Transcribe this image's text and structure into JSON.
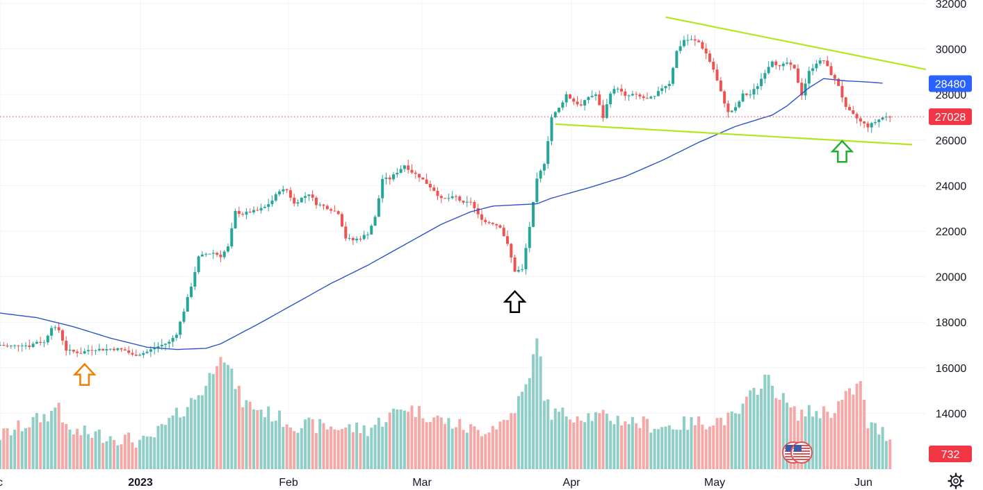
{
  "chart_data": {
    "type": "candlestick",
    "y_range": [
      11600,
      32500
    ],
    "y_ticks": [
      "32000",
      "30000",
      "28000",
      "26000",
      "24000",
      "22000",
      "20000",
      "18000",
      "16000",
      "14000"
    ],
    "x_labels": [
      {
        "label": "c",
        "bold": false
      },
      {
        "label": "2023",
        "bold": true
      },
      {
        "label": "Feb",
        "bold": false
      },
      {
        "label": "Mar",
        "bold": false
      },
      {
        "label": "Apr",
        "bold": false
      },
      {
        "label": "May",
        "bold": false
      },
      {
        "label": "Jun",
        "bold": false
      }
    ],
    "price_tag": {
      "text": "27028",
      "value": 27028,
      "color": "#f23645"
    },
    "ma_tag": {
      "text": "28480",
      "value": 28480,
      "color": "#2962ff"
    },
    "volume_tag": {
      "text": "732",
      "color": "#f23645"
    },
    "colors": {
      "up": "#26a69a",
      "down": "#ef5350",
      "vol_up": "#8fcec7",
      "vol_down": "#f5a8a6",
      "ma": "#2a53c9",
      "trend": "#b5e61d"
    },
    "close_keypoints": [
      [
        0,
        17000
      ],
      [
        2,
        16950
      ],
      [
        4,
        16960
      ],
      [
        6,
        17020
      ],
      [
        8,
        16950
      ],
      [
        10,
        17150
      ],
      [
        12,
        17100
      ],
      [
        14,
        17800
      ],
      [
        16,
        17650
      ],
      [
        18,
        16780
      ],
      [
        20,
        16700
      ],
      [
        22,
        16650
      ],
      [
        24,
        16780
      ],
      [
        26,
        16820
      ],
      [
        28,
        16800
      ],
      [
        30,
        16830
      ],
      [
        32,
        16820
      ],
      [
        34,
        16760
      ],
      [
        36,
        16550
      ],
      [
        38,
        16600
      ],
      [
        40,
        16700
      ],
      [
        42,
        16880
      ],
      [
        44,
        17000
      ],
      [
        46,
        17120
      ],
      [
        48,
        17500
      ],
      [
        50,
        18500
      ],
      [
        52,
        19600
      ],
      [
        54,
        20850
      ],
      [
        56,
        21000
      ],
      [
        58,
        21050
      ],
      [
        60,
        20900
      ],
      [
        62,
        21300
      ],
      [
        64,
        22850
      ],
      [
        66,
        22750
      ],
      [
        68,
        22850
      ],
      [
        70,
        22900
      ],
      [
        72,
        23050
      ],
      [
        74,
        23350
      ],
      [
        76,
        23800
      ],
      [
        78,
        23800
      ],
      [
        80,
        23200
      ],
      [
        82,
        23450
      ],
      [
        84,
        23650
      ],
      [
        86,
        23200
      ],
      [
        88,
        23100
      ],
      [
        90,
        22950
      ],
      [
        92,
        22800
      ],
      [
        94,
        21700
      ],
      [
        96,
        21600
      ],
      [
        98,
        21700
      ],
      [
        100,
        21900
      ],
      [
        102,
        22600
      ],
      [
        104,
        24300
      ],
      [
        106,
        24300
      ],
      [
        108,
        24600
      ],
      [
        110,
        24900
      ],
      [
        112,
        24600
      ],
      [
        114,
        24400
      ],
      [
        116,
        24100
      ],
      [
        118,
        23800
      ],
      [
        120,
        23400
      ],
      [
        122,
        23450
      ],
      [
        124,
        23500
      ],
      [
        126,
        23200
      ],
      [
        128,
        23300
      ],
      [
        130,
        22700
      ],
      [
        132,
        22400
      ],
      [
        134,
        22350
      ],
      [
        136,
        22200
      ],
      [
        138,
        21400
      ],
      [
        140,
        20250
      ],
      [
        142,
        20300
      ],
      [
        144,
        22200
      ],
      [
        146,
        24250
      ],
      [
        148,
        25000
      ],
      [
        150,
        27000
      ],
      [
        152,
        27400
      ],
      [
        154,
        28000
      ],
      [
        156,
        27700
      ],
      [
        158,
        27500
      ],
      [
        160,
        27900
      ],
      [
        162,
        28000
      ],
      [
        164,
        27000
      ],
      [
        166,
        28100
      ],
      [
        168,
        28300
      ],
      [
        170,
        27900
      ],
      [
        172,
        28000
      ],
      [
        174,
        27900
      ],
      [
        176,
        27800
      ],
      [
        178,
        27900
      ],
      [
        180,
        28300
      ],
      [
        182,
        28500
      ],
      [
        184,
        29900
      ],
      [
        186,
        30400
      ],
      [
        188,
        30400
      ],
      [
        190,
        30300
      ],
      [
        192,
        29800
      ],
      [
        194,
        29100
      ],
      [
        196,
        28100
      ],
      [
        198,
        27200
      ],
      [
        200,
        27400
      ],
      [
        202,
        28000
      ],
      [
        204,
        28000
      ],
      [
        206,
        28400
      ],
      [
        208,
        29000
      ],
      [
        210,
        29500
      ],
      [
        212,
        29200
      ],
      [
        214,
        29400
      ],
      [
        216,
        29100
      ],
      [
        218,
        28000
      ],
      [
        220,
        29000
      ],
      [
        222,
        29400
      ],
      [
        224,
        29500
      ],
      [
        226,
        28900
      ],
      [
        228,
        28400
      ],
      [
        230,
        27400
      ],
      [
        232,
        27100
      ],
      [
        234,
        26800
      ],
      [
        236,
        26600
      ],
      [
        238,
        26800
      ],
      [
        240,
        27000
      ],
      [
        242,
        27028
      ]
    ],
    "ma_keypoints": [
      [
        0,
        18400
      ],
      [
        10,
        18200
      ],
      [
        20,
        17800
      ],
      [
        30,
        17300
      ],
      [
        40,
        16900
      ],
      [
        48,
        16800
      ],
      [
        56,
        16850
      ],
      [
        60,
        17050
      ],
      [
        70,
        17900
      ],
      [
        80,
        18800
      ],
      [
        90,
        19700
      ],
      [
        100,
        20500
      ],
      [
        110,
        21400
      ],
      [
        120,
        22300
      ],
      [
        128,
        22850
      ],
      [
        134,
        23100
      ],
      [
        140,
        23150
      ],
      [
        146,
        23200
      ],
      [
        150,
        23450
      ],
      [
        160,
        23900
      ],
      [
        170,
        24400
      ],
      [
        180,
        25100
      ],
      [
        190,
        25900
      ],
      [
        200,
        26600
      ],
      [
        210,
        27100
      ],
      [
        214,
        27500
      ],
      [
        220,
        28300
      ],
      [
        224,
        28700
      ],
      [
        230,
        28600
      ],
      [
        236,
        28550
      ],
      [
        240,
        28500
      ]
    ],
    "volume_keypoints": [
      [
        0,
        13000
      ],
      [
        14,
        14000
      ],
      [
        16,
        14500
      ],
      [
        18,
        13200
      ],
      [
        30,
        13000
      ],
      [
        40,
        12700
      ],
      [
        52,
        14500
      ],
      [
        56,
        15200
      ],
      [
        60,
        16800
      ],
      [
        66,
        14500
      ],
      [
        80,
        13500
      ],
      [
        100,
        13300
      ],
      [
        110,
        14300
      ],
      [
        120,
        13700
      ],
      [
        130,
        13200
      ],
      [
        138,
        13700
      ],
      [
        144,
        15400
      ],
      [
        146,
        17600
      ],
      [
        148,
        14800
      ],
      [
        150,
        14000
      ],
      [
        160,
        13900
      ],
      [
        170,
        13700
      ],
      [
        180,
        13400
      ],
      [
        190,
        13600
      ],
      [
        200,
        13800
      ],
      [
        208,
        15600
      ],
      [
        216,
        14000
      ],
      [
        226,
        14100
      ],
      [
        234,
        15300
      ],
      [
        236,
        13500
      ],
      [
        242,
        13000
      ]
    ],
    "trendlines": [
      {
        "from": [
          181,
          31400
        ],
        "to": [
          255,
          29000
        ]
      },
      {
        "from": [
          151,
          26700
        ],
        "to": [
          248,
          25800
        ]
      }
    ],
    "markers": [
      {
        "kind": "outline-up-arrow",
        "color": "#f57c00",
        "at": [
          23,
          15700
        ]
      },
      {
        "kind": "outline-up-arrow",
        "color": "#000000",
        "at": [
          140,
          18900
        ]
      },
      {
        "kind": "outline-up-arrow",
        "color": "#1fae2f",
        "at": [
          229,
          25500
        ]
      }
    ],
    "icons": [
      "us-flag-icon",
      "us-flag-icon"
    ],
    "settings_icon": "gear-icon"
  }
}
